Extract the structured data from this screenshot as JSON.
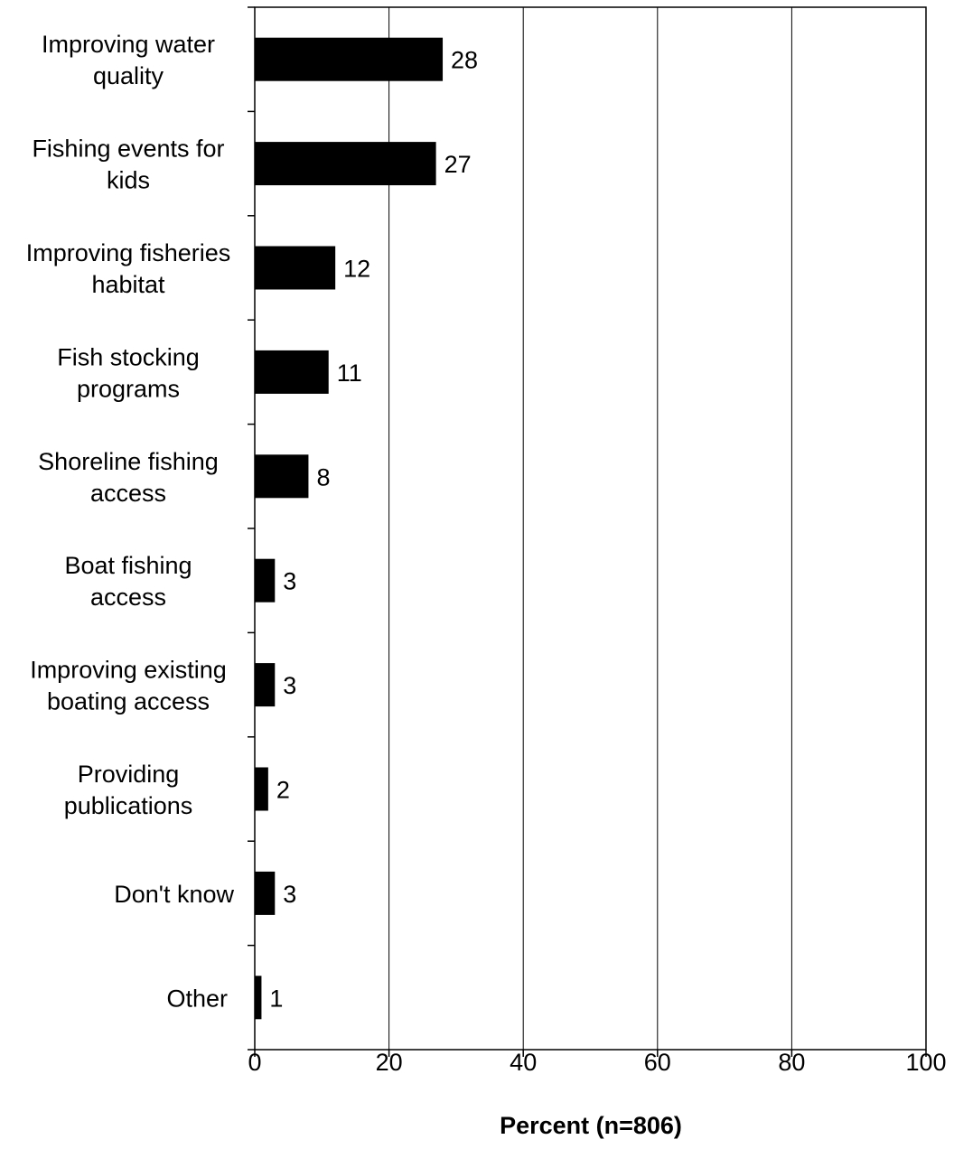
{
  "chart_data": {
    "type": "bar",
    "orientation": "horizontal",
    "categories": [
      [
        "Improving water",
        "quality"
      ],
      [
        "Fishing events for",
        "kids"
      ],
      [
        "Improving fisheries",
        "habitat"
      ],
      [
        "Fish stocking",
        "programs"
      ],
      [
        "Shoreline fishing",
        "access"
      ],
      [
        "Boat fishing",
        "access"
      ],
      [
        "Improving existing",
        "boating access"
      ],
      [
        "Providing",
        "publications"
      ],
      [
        "Don't know"
      ],
      [
        "Other"
      ]
    ],
    "values": [
      28,
      27,
      12,
      11,
      8,
      3,
      3,
      2,
      3,
      1
    ],
    "value_labels": [
      "28",
      "27",
      "12",
      "11",
      "8",
      "3",
      "3",
      "2",
      "3",
      "1"
    ],
    "xlabel": "Percent (n=806)",
    "xlim": [
      0,
      100
    ],
    "xticks": [
      "0",
      "20",
      "40",
      "60",
      "80",
      "100"
    ],
    "grid": "vertical",
    "bar_color": "#000000"
  }
}
